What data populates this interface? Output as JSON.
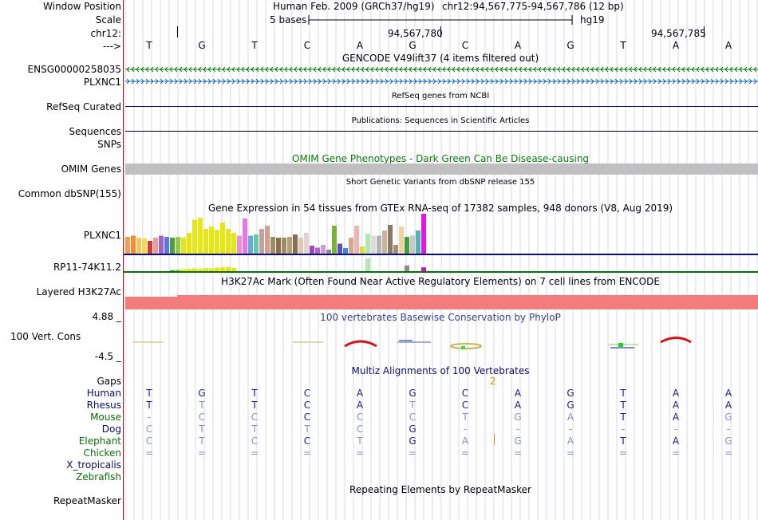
{
  "header": {
    "window_position_label": "Window Position",
    "scale_label": "Scale",
    "chrom_label": "chr12:",
    "arrow_label": "--->",
    "assembly": "Human Feb. 2009 (GRCh37/hg19)",
    "range": "chr12:94,567,775-94,567,786 (12 bp)",
    "scale_text": "5 bases",
    "scale_db": "hg19",
    "pos_mark_1": "94,567,780",
    "pos_mark_2": "94,567,785"
  },
  "sequence": [
    "T",
    "G",
    "T",
    "C",
    "A",
    "G",
    "C",
    "A",
    "G",
    "T",
    "A",
    "A"
  ],
  "tracks": {
    "gencode": {
      "title": "GENCODE V49lift37 (4 items filtered out)",
      "gene1": "ENSG00000258035",
      "gene2": "PLXNC1",
      "gene1_color": "#0a7a0a",
      "gene2_color": "#1a6aa8"
    },
    "refseq": {
      "label": "RefSeq Curated",
      "title": "RefSeq genes from NCBI",
      "color": "#0c0c78"
    },
    "pubs": {
      "label": "Sequences",
      "title": "Publications: Sequences in Scientific Articles"
    },
    "snps": {
      "label": "SNPs"
    },
    "omim": {
      "label": "OMIM Genes",
      "title": "OMIM Gene Phenotypes - Dark Green Can Be Disease-causing",
      "color": "#0a7a0a"
    },
    "dbsnp": {
      "label": "Common dbSNP(155)",
      "title": "Short Genetic Variants from dbSNP release 155"
    },
    "gtex": {
      "title": "Gene Expression in 54 tissues from GTEx RNA-seq of 17382 samples, 948 donors (V8, Aug 2019)",
      "gene1": "PLXNC1",
      "gene2": "RP11-74K11.2"
    },
    "h3k27ac": {
      "label": "Layered H3K27Ac",
      "title": "H3K27Ac Mark (Often Found Near Active Regulatory Elements) on 7 cell lines from ENCODE",
      "color": "#f47c7c"
    },
    "phylop": {
      "title": "100 vertebrates Basewise Conservation by PhyloP",
      "label": "100 Vert. Cons",
      "max": "4.88 _",
      "min": "-4.5 _"
    },
    "multiz": {
      "title": "Multiz Alignments of 100 Vertebrates",
      "gaps_label": "Gaps",
      "gap_count": "2"
    },
    "repeatmasker": {
      "label": "RepeatMasker",
      "title": "Repeating Elements by RepeatMasker"
    }
  },
  "alignment": [
    {
      "species": "Human",
      "bases": [
        "T",
        "G",
        "T",
        "C",
        "A",
        "G",
        "C",
        "A",
        "G",
        "T",
        "A",
        "A"
      ],
      "colors": [
        "#1a1a8a",
        "#1a1a8a",
        "#1a1a8a",
        "#1a1a8a",
        "#1a1a8a",
        "#1a1a8a",
        "#1a1a8a",
        "#1a1a8a",
        "#1a1a8a",
        "#1a1a8a",
        "#1a1a8a",
        "#1a1a8a"
      ]
    },
    {
      "species": "Rhesus",
      "bases": [
        "T",
        "T",
        "T",
        "C",
        "A",
        "T",
        "C",
        "A",
        "G",
        "T",
        "A",
        "A"
      ],
      "colors": [
        "#1a1a8a",
        "#8c8cc8",
        "#1a1a8a",
        "#1a1a8a",
        "#1a1a8a",
        "#8c8cc8",
        "#1a1a8a",
        "#1a1a8a",
        "#1a1a8a",
        "#1a1a8a",
        "#1a1a8a",
        "#1a1a8a"
      ]
    },
    {
      "species": "Mouse",
      "bases": [
        "-",
        "C",
        "C",
        "C",
        "C",
        "C",
        "T",
        "G",
        "A",
        "T",
        "A",
        "G"
      ],
      "colors": [
        "#8c8cc8",
        "#8c8cc8",
        "#8c8cc8",
        "#1a1a8a",
        "#8c8cc8",
        "#8c8cc8",
        "#8c8cc8",
        "#8c8cc8",
        "#8c8cc8",
        "#1a1a8a",
        "#1a1a8a",
        "#8c8cc8"
      ]
    },
    {
      "species": "Dog",
      "bases": [
        "C",
        "T",
        "T",
        "T",
        "C",
        "G",
        "-",
        "-",
        "-",
        "-",
        "-",
        "-"
      ],
      "colors": [
        "#8c8cc8",
        "#8c8cc8",
        "#8c8cc8",
        "#8c8cc8",
        "#8c8cc8",
        "#1a1a8a",
        "#8c8cc8",
        "#8c8cc8",
        "#8c8cc8",
        "#8c8cc8",
        "#8c8cc8",
        "#8c8cc8"
      ]
    },
    {
      "species": "Elephant",
      "bases": [
        "C",
        "T",
        "C",
        "C",
        "T",
        "G",
        "A",
        "G",
        "A",
        "T",
        "A",
        "G"
      ],
      "colors": [
        "#8c8cc8",
        "#8c8cc8",
        "#8c8cc8",
        "#1a1a8a",
        "#8c8cc8",
        "#1a1a8a",
        "#8c8cc8",
        "#8c8cc8",
        "#8c8cc8",
        "#1a1a8a",
        "#1a1a8a",
        "#8c8cc8"
      ]
    },
    {
      "species": "Chicken",
      "bases": [
        "=",
        "=",
        "=",
        "=",
        "=",
        "=",
        "=",
        "=",
        "=",
        "=",
        "=",
        "="
      ],
      "colors": [
        "#8c8cc8",
        "#8c8cc8",
        "#8c8cc8",
        "#8c8cc8",
        "#8c8cc8",
        "#8c8cc8",
        "#8c8cc8",
        "#8c8cc8",
        "#8c8cc8",
        "#8c8cc8",
        "#8c8cc8",
        "#8c8cc8"
      ]
    },
    {
      "species": "X_tropicalis",
      "bases": [],
      "colors": []
    },
    {
      "species": "Zebrafish",
      "bases": [],
      "colors": []
    }
  ],
  "species_color": "#0a0a6e",
  "species_color_green": "#0a6e0a",
  "gtex_bars": {
    "plxnc1": [
      {
        "v": 0.42,
        "c": "#f0a050"
      },
      {
        "v": 0.45,
        "c": "#f08c3c"
      },
      {
        "v": 0.4,
        "c": "#f0c864"
      },
      {
        "v": 0.38,
        "c": "#f0dc50"
      },
      {
        "v": 0.32,
        "c": "#d23c3c"
      },
      {
        "v": 0.4,
        "c": "#e6a096"
      },
      {
        "v": 0.45,
        "c": "#a064c8"
      },
      {
        "v": 0.42,
        "c": "#5a78dc"
      },
      {
        "v": 0.4,
        "c": "#4ca03c"
      },
      {
        "v": 0.42,
        "c": "#96c850"
      },
      {
        "v": 0.4,
        "c": "#e6e614"
      },
      {
        "v": 0.52,
        "c": "#e6e614"
      },
      {
        "v": 0.85,
        "c": "#e6e614"
      },
      {
        "v": 0.9,
        "c": "#e6e614"
      },
      {
        "v": 0.62,
        "c": "#e6e614"
      },
      {
        "v": 0.68,
        "c": "#e6e614"
      },
      {
        "v": 0.6,
        "c": "#e6e614"
      },
      {
        "v": 0.78,
        "c": "#e6e614"
      },
      {
        "v": 0.62,
        "c": "#e6e614"
      },
      {
        "v": 0.52,
        "c": "#e6e614"
      },
      {
        "v": 0.45,
        "c": "#f08cd2"
      },
      {
        "v": 0.88,
        "c": "#e678e6"
      },
      {
        "v": 0.45,
        "c": "#64aadc"
      },
      {
        "v": 0.48,
        "c": "#64c8aa"
      },
      {
        "v": 0.62,
        "c": "#c8a0a0"
      },
      {
        "v": 0.7,
        "c": "#d2a08c"
      },
      {
        "v": 0.42,
        "c": "#a08c64"
      },
      {
        "v": 0.4,
        "c": "#8c6e50"
      },
      {
        "v": 0.4,
        "c": "#a08c64"
      },
      {
        "v": 0.42,
        "c": "#b4a078"
      },
      {
        "v": 0.48,
        "c": "#8c6e50"
      },
      {
        "v": 0.4,
        "c": "#dcc8b4"
      },
      {
        "v": 0.52,
        "c": "#e6d2d2"
      },
      {
        "v": 0.2,
        "c": "#9650b4"
      },
      {
        "v": 0.15,
        "c": "#b464c8"
      },
      {
        "v": 0.22,
        "c": "#c8a0dc"
      },
      {
        "v": 0.1,
        "c": "#8c8c8c"
      },
      {
        "v": 0.7,
        "c": "#78b43c"
      },
      {
        "v": 0.25,
        "c": "#6450b4"
      },
      {
        "v": 0.14,
        "c": "#3c8cdc"
      },
      {
        "v": 0.4,
        "c": "#d2aa8c"
      },
      {
        "v": 0.7,
        "c": "#f0b4b4"
      },
      {
        "v": 0.18,
        "c": "#dcdc3c"
      },
      {
        "v": 0.5,
        "c": "#b4e6b4"
      },
      {
        "v": 0.45,
        "c": "#dcdcdc"
      },
      {
        "v": 0.45,
        "c": "#b4b4b4"
      },
      {
        "v": 0.58,
        "c": "#c8b49c"
      },
      {
        "v": 0.72,
        "c": "#8c7864"
      },
      {
        "v": 0.22,
        "c": "#a08c78"
      },
      {
        "v": 0.68,
        "c": "#f0d2a0"
      },
      {
        "v": 0.42,
        "c": "#3ca03c"
      },
      {
        "v": 0.45,
        "c": "#c8c8c8"
      },
      {
        "v": 0.58,
        "c": "#50b4b4"
      },
      {
        "v": 1.0,
        "c": "#e614e6"
      }
    ],
    "rp11": [
      {
        "v": 0,
        "c": "#f0a050"
      },
      {
        "v": 0,
        "c": "#f08c3c"
      },
      {
        "v": 0,
        "c": "#f0c864"
      },
      {
        "v": 0,
        "c": "#f0dc50"
      },
      {
        "v": 0,
        "c": "#d23c3c"
      },
      {
        "v": 0,
        "c": "#e6a096"
      },
      {
        "v": 0,
        "c": "#a064c8"
      },
      {
        "v": 0,
        "c": "#5a78dc"
      },
      {
        "v": 0.08,
        "c": "#4ca03c"
      },
      {
        "v": 0.12,
        "c": "#96c850"
      },
      {
        "v": 0.16,
        "c": "#e6e614"
      },
      {
        "v": 0.2,
        "c": "#e6e614"
      },
      {
        "v": 0.22,
        "c": "#e6e614"
      },
      {
        "v": 0.18,
        "c": "#e6e614"
      },
      {
        "v": 0.24,
        "c": "#e6e614"
      },
      {
        "v": 0.22,
        "c": "#e6e614"
      },
      {
        "v": 0.28,
        "c": "#e6e614"
      },
      {
        "v": 0.3,
        "c": "#e6e614"
      },
      {
        "v": 0.34,
        "c": "#e6e614"
      },
      {
        "v": 0.26,
        "c": "#e6e614"
      },
      {
        "v": 0,
        "c": "#f08cd2"
      },
      {
        "v": 0,
        "c": "#e678e6"
      },
      {
        "v": 0,
        "c": "#64aadc"
      },
      {
        "v": 0,
        "c": "#64c8aa"
      },
      {
        "v": 0,
        "c": "#c8a0a0"
      },
      {
        "v": 0,
        "c": "#d2a08c"
      },
      {
        "v": 0,
        "c": "#a08c64"
      },
      {
        "v": 0,
        "c": "#8c6e50"
      },
      {
        "v": 0,
        "c": "#a08c64"
      },
      {
        "v": 0,
        "c": "#b4a078"
      },
      {
        "v": 0,
        "c": "#8c6e50"
      },
      {
        "v": 0,
        "c": "#dcc8b4"
      },
      {
        "v": 0,
        "c": "#e6d2d2"
      },
      {
        "v": 0,
        "c": "#9650b4"
      },
      {
        "v": 0,
        "c": "#b464c8"
      },
      {
        "v": 0,
        "c": "#c8a0dc"
      },
      {
        "v": 0,
        "c": "#8c8c8c"
      },
      {
        "v": 0,
        "c": "#78b43c"
      },
      {
        "v": 0,
        "c": "#6450b4"
      },
      {
        "v": 0,
        "c": "#3c8cdc"
      },
      {
        "v": 0,
        "c": "#d2aa8c"
      },
      {
        "v": 0,
        "c": "#f0b4b4"
      },
      {
        "v": 0,
        "c": "#dcdc3c"
      },
      {
        "v": 1.0,
        "c": "#b4e6b4"
      },
      {
        "v": 0,
        "c": "#dcdcdc"
      },
      {
        "v": 0,
        "c": "#b4b4b4"
      },
      {
        "v": 0,
        "c": "#c8b49c"
      },
      {
        "v": 0,
        "c": "#8c7864"
      },
      {
        "v": 0,
        "c": "#a08c78"
      },
      {
        "v": 0,
        "c": "#f0d2a0"
      },
      {
        "v": 0.45,
        "c": "#8c8c8c"
      },
      {
        "v": 0,
        "c": "#c8c8c8"
      },
      {
        "v": 0,
        "c": "#50b4b4"
      },
      {
        "v": 0.3,
        "c": "#c814c8"
      }
    ]
  },
  "colors": {
    "multiz_title": "#0a0a6e",
    "phylop_title": "#3c3c8c",
    "phylop_max": "#3c3c8c",
    "phylop_min": "#8c3c1e",
    "gaps": "#dc8c00"
  }
}
